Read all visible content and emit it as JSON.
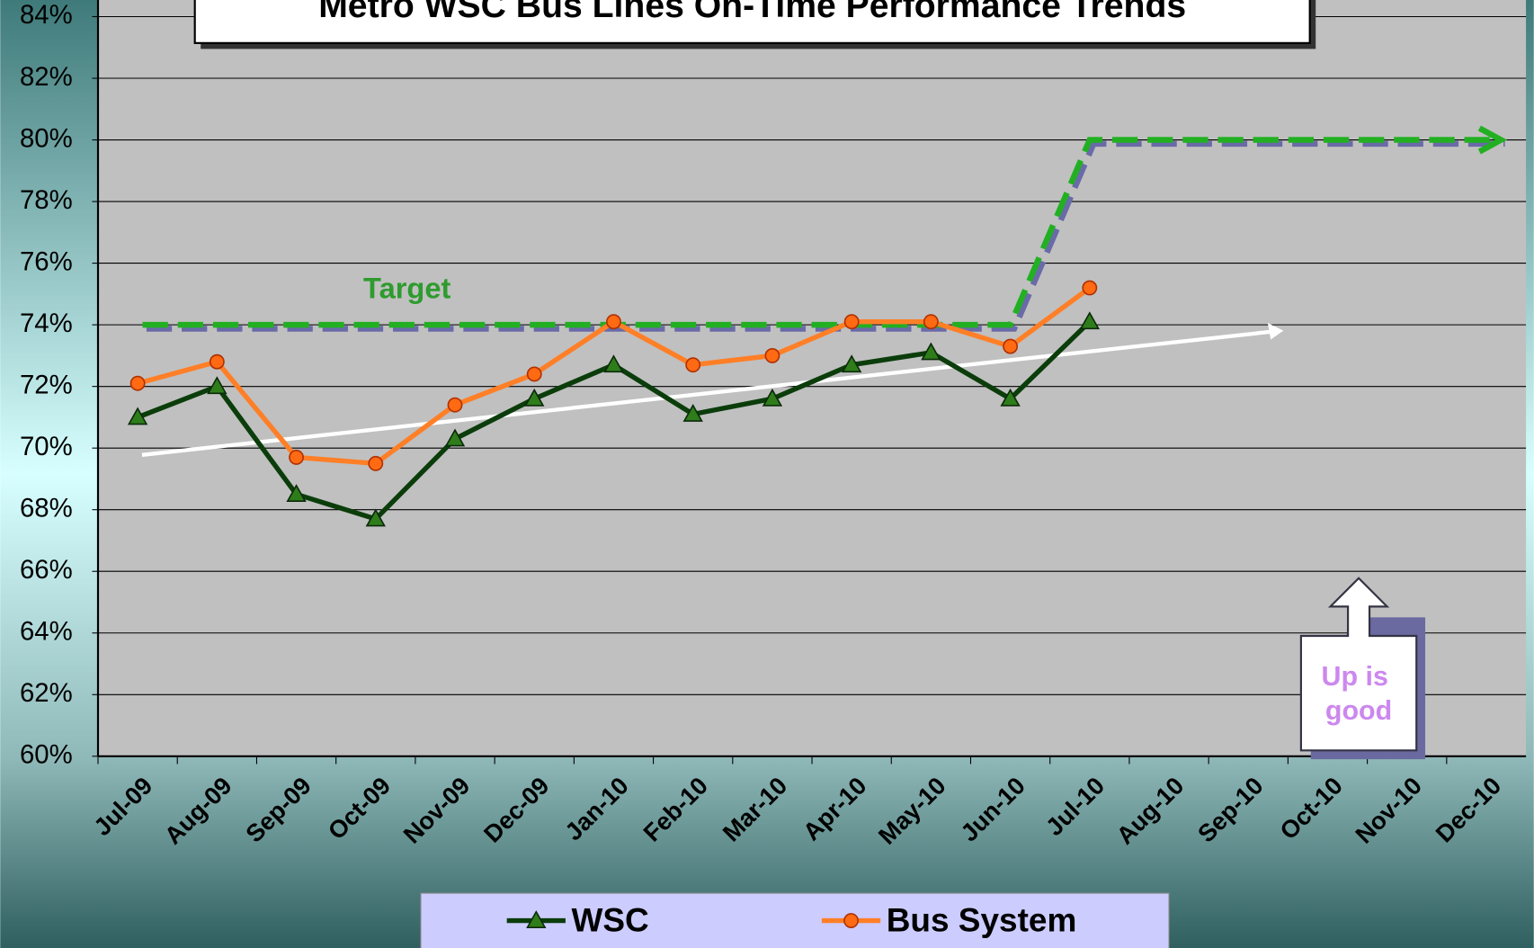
{
  "chart_data": {
    "type": "line",
    "title": "Metro WSC Bus Lines On-Time Performance Trends",
    "categories": [
      "Jul-09",
      "Aug-09",
      "Sep-09",
      "Oct-09",
      "Nov-09",
      "Dec-09",
      "Jan-10",
      "Feb-10",
      "Mar-10",
      "Apr-10",
      "May-10",
      "Jun-10",
      "Jul-10",
      "Aug-10",
      "Sep-10",
      "Oct-10",
      "Nov-10",
      "Dec-10"
    ],
    "series": [
      {
        "name": "WSC",
        "color": "#0b3d0b",
        "marker_color": "#2e7d1a",
        "marker": "triangle",
        "values": [
          71.0,
          72.0,
          68.5,
          67.7,
          70.3,
          71.6,
          72.7,
          71.1,
          71.6,
          72.7,
          73.1,
          71.6,
          74.1,
          null,
          null,
          null,
          null,
          null
        ]
      },
      {
        "name": "Bus System",
        "color": "#ff7f27",
        "marker_color": "#ff6a13",
        "marker": "circle",
        "values": [
          72.1,
          72.8,
          69.7,
          69.5,
          71.4,
          72.4,
          74.1,
          72.7,
          73.0,
          74.1,
          74.1,
          73.3,
          75.2,
          null,
          null,
          null,
          null,
          null
        ]
      }
    ],
    "target": {
      "label": "Target",
      "color": "#22b022",
      "values": [
        74,
        74,
        74,
        74,
        74,
        74,
        74,
        74,
        74,
        74,
        74,
        74,
        80,
        80,
        80,
        80,
        80,
        80
      ]
    },
    "annotation": "Up is good",
    "ylim": [
      60,
      84
    ],
    "yticks": [
      {
        "value": 60,
        "label": "60%"
      },
      {
        "value": 62,
        "label": "62%"
      },
      {
        "value": 64,
        "label": "64%"
      },
      {
        "value": 66,
        "label": "66%"
      },
      {
        "value": 68,
        "label": "68%"
      },
      {
        "value": 70,
        "label": "70%"
      },
      {
        "value": 72,
        "label": "72%"
      },
      {
        "value": 74,
        "label": "74%"
      },
      {
        "value": 76,
        "label": "76%"
      },
      {
        "value": 78,
        "label": "78%"
      },
      {
        "value": 80,
        "label": "80%"
      },
      {
        "value": 82,
        "label": "82%"
      },
      {
        "value": 84,
        "label": "84%"
      }
    ],
    "grid": true,
    "legend": "bottom"
  }
}
